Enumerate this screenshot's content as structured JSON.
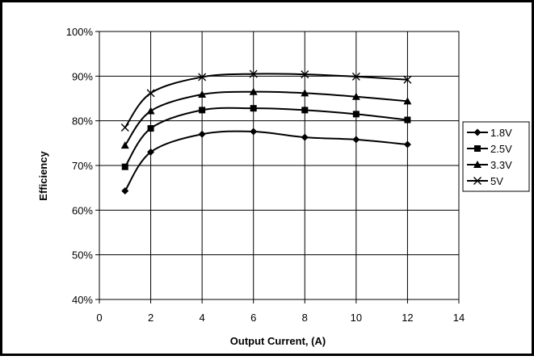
{
  "chart_data": {
    "type": "line",
    "title": "",
    "xlabel": "Output Current, (A)",
    "ylabel": "Efficiency",
    "xlim": [
      0,
      14
    ],
    "ylim": [
      0.4,
      1.0
    ],
    "xticks": [
      0,
      2,
      4,
      6,
      8,
      10,
      12,
      14
    ],
    "xtick_labels": [
      "0",
      "2",
      "4",
      "6",
      "8",
      "10",
      "12",
      "14"
    ],
    "yticks": [
      0.4,
      0.5,
      0.6,
      0.7,
      0.8,
      0.9,
      1.0
    ],
    "ytick_labels": [
      "40%",
      "50%",
      "60%",
      "70%",
      "80%",
      "90%",
      "100%"
    ],
    "grid": true,
    "legend_position": "right",
    "series": [
      {
        "name": "1.8V",
        "marker": "diamond",
        "x": [
          1,
          2,
          4,
          6,
          8,
          10,
          12
        ],
        "y": [
          0.643,
          0.73,
          0.77,
          0.776,
          0.763,
          0.758,
          0.747
        ]
      },
      {
        "name": "2.5V",
        "marker": "square",
        "x": [
          1,
          2,
          4,
          6,
          8,
          10,
          12
        ],
        "y": [
          0.697,
          0.783,
          0.824,
          0.828,
          0.824,
          0.815,
          0.802
        ]
      },
      {
        "name": "3.3V",
        "marker": "triangle",
        "x": [
          1,
          2,
          4,
          6,
          8,
          10,
          12
        ],
        "y": [
          0.745,
          0.822,
          0.859,
          0.865,
          0.862,
          0.854,
          0.844
        ]
      },
      {
        "name": "5V",
        "marker": "x",
        "x": [
          1,
          2,
          4,
          6,
          8,
          10,
          12
        ],
        "y": [
          0.785,
          0.862,
          0.898,
          0.905,
          0.904,
          0.899,
          0.892
        ]
      }
    ]
  }
}
